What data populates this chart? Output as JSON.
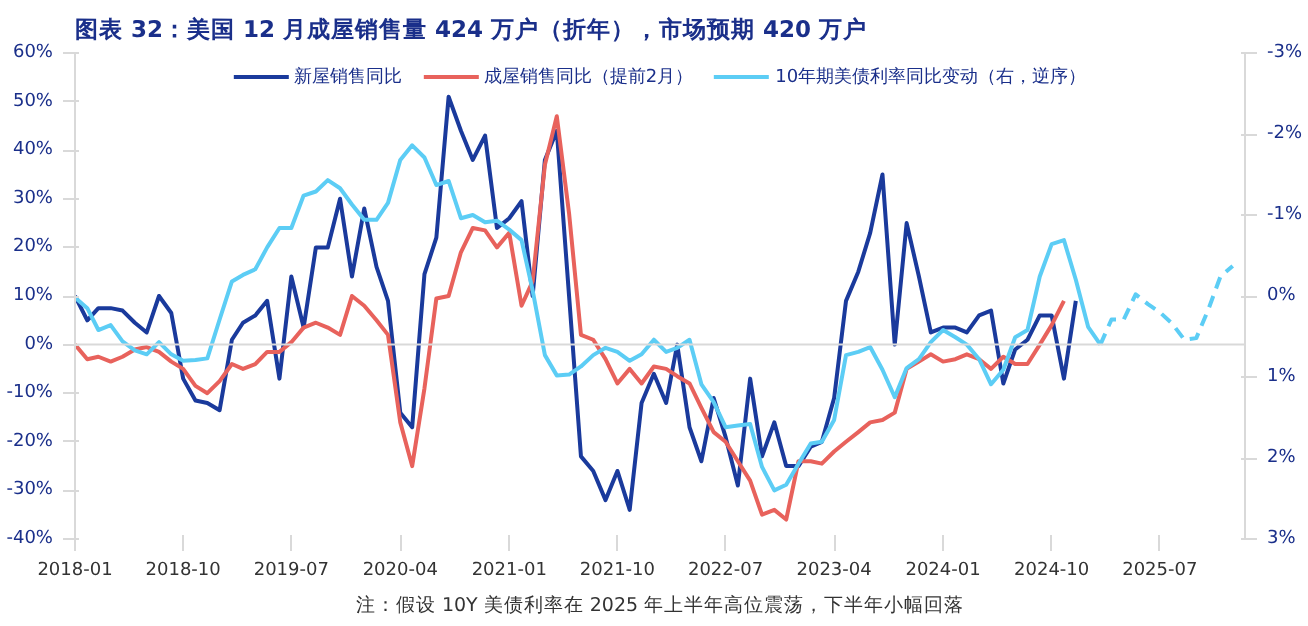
{
  "chart_data": {
    "type": "line",
    "title": "图表 32：美国 12 月成屋销售量 424 万户（折年），市场预期 420 万户",
    "annotations": [
      "注：假设 10Y 美债利率在 2025 年上半年高位震荡，下半年小幅回落"
    ],
    "xlim": [
      "2018-01",
      "2026-02"
    ],
    "x": [
      "2018-01",
      "2018-02",
      "2018-03",
      "2018-04",
      "2018-05",
      "2018-06",
      "2018-07",
      "2018-08",
      "2018-09",
      "2018-10",
      "2018-11",
      "2018-12",
      "2019-01",
      "2019-02",
      "2019-03",
      "2019-04",
      "2019-05",
      "2019-06",
      "2019-07",
      "2019-08",
      "2019-09",
      "2019-10",
      "2019-11",
      "2019-12",
      "2020-01",
      "2020-02",
      "2020-03",
      "2020-04",
      "2020-05",
      "2020-06",
      "2020-07",
      "2020-08",
      "2020-09",
      "2020-10",
      "2020-11",
      "2020-12",
      "2021-01",
      "2021-02",
      "2021-03",
      "2021-04",
      "2021-05",
      "2021-06",
      "2021-07",
      "2021-08",
      "2021-09",
      "2021-10",
      "2021-11",
      "2021-12",
      "2022-01",
      "2022-02",
      "2022-03",
      "2022-04",
      "2022-05",
      "2022-06",
      "2022-07",
      "2022-08",
      "2022-09",
      "2022-10",
      "2022-11",
      "2022-12",
      "2023-01",
      "2023-02",
      "2023-03",
      "2023-04",
      "2023-05",
      "2023-06",
      "2023-07",
      "2023-08",
      "2023-09",
      "2023-10",
      "2023-11",
      "2023-12",
      "2024-01",
      "2024-02",
      "2024-03",
      "2024-04",
      "2024-05",
      "2024-06",
      "2024-07",
      "2024-08",
      "2024-09",
      "2024-10",
      "2024-11",
      "2024-12",
      "2025-01",
      "2025-02"
    ],
    "xticks": [
      "2018-01",
      "2018-10",
      "2019-07",
      "2020-04",
      "2021-01",
      "2021-10",
      "2022-07",
      "2023-04",
      "2024-01",
      "2024-10",
      "2025-07"
    ],
    "ylim": [
      -40,
      60
    ],
    "yticks": [
      {
        "value": -40,
        "label": "-40%"
      },
      {
        "value": -30,
        "label": "-30%"
      },
      {
        "value": -20,
        "label": "-20%"
      },
      {
        "value": -10,
        "label": "-10%"
      },
      {
        "value": 0,
        "label": "0%"
      },
      {
        "value": 10,
        "label": "10%"
      },
      {
        "value": 20,
        "label": "20%"
      },
      {
        "value": 30,
        "label": "30%"
      },
      {
        "value": 40,
        "label": "40%"
      },
      {
        "value": 50,
        "label": "50%"
      },
      {
        "value": 60,
        "label": "60%"
      }
    ],
    "y2lim": [
      3,
      -3
    ],
    "y2ticks": [
      {
        "value": -3,
        "label": "-3%"
      },
      {
        "value": -2,
        "label": "-2%"
      },
      {
        "value": -1,
        "label": "-1%"
      },
      {
        "value": 0,
        "label": "0%"
      },
      {
        "value": 1,
        "label": "1%"
      },
      {
        "value": 2,
        "label": "2%"
      },
      {
        "value": 3,
        "label": "3%"
      }
    ],
    "ref_lines": [
      {
        "axis": "y",
        "value": 0,
        "color": "#d9d9d9"
      }
    ],
    "legend": "top",
    "grid": false,
    "marker": "none",
    "series": [
      {
        "name": "新屋销售同比",
        "color": "#1a3a9c",
        "values": [
          10,
          5,
          7.5,
          7.5,
          7,
          4.5,
          2.5,
          10,
          6.5,
          -7,
          -11.5,
          -12,
          -13.5,
          1,
          4.5,
          6,
          9,
          -7,
          14,
          3.5,
          20,
          20,
          30,
          14,
          28,
          16,
          9,
          -14,
          -17,
          14.5,
          22,
          51,
          44,
          38,
          43,
          24,
          26,
          29.5,
          10,
          38,
          44,
          10,
          -23,
          -26,
          -32,
          -26,
          -34,
          -12,
          -6,
          -12,
          0,
          -17,
          -24,
          -11,
          -19,
          -29,
          -7,
          -23,
          -16,
          -25,
          -25,
          -21,
          -20,
          -11,
          9,
          15,
          23,
          35,
          0,
          25,
          14,
          2.5,
          3.5,
          3.5,
          2.5,
          6,
          7,
          -8,
          -1,
          1,
          6,
          6,
          -7,
          9,
          null,
          null
        ]
      },
      {
        "name": "成屋销售同比（提前2月）",
        "color": "#e8625c",
        "values": [
          0,
          -3,
          -2.5,
          -3.5,
          -2.5,
          -1,
          -0.5,
          -1.5,
          -3.5,
          -5,
          -8.5,
          -10,
          -7.5,
          -4,
          -5,
          -4,
          -1.5,
          -1.5,
          0.5,
          3.5,
          4.5,
          3.5,
          2,
          10,
          8,
          5,
          2,
          -16,
          -25,
          -9,
          9.5,
          10,
          19,
          24,
          23.5,
          20,
          23,
          8,
          13,
          37,
          47,
          27,
          2,
          1,
          -3,
          -8,
          -5,
          -8,
          -4.5,
          -5,
          -6.5,
          -8,
          -13,
          -18,
          -20,
          -24,
          -28,
          -35,
          -34,
          -36,
          -24,
          -24,
          -24.5,
          -22,
          -20,
          -18,
          -16,
          -15.5,
          -14,
          -5,
          -3.5,
          -2,
          -3.5,
          -3,
          -2,
          -3,
          -5,
          -2.5,
          -4,
          -4,
          0,
          4,
          9,
          null,
          null,
          null
        ]
      },
      {
        "name": "10年期美债利率同比变动（右，逆序）",
        "color": "#5ccdf5",
        "axis": "y2",
        "values": [
          0.02,
          0.15,
          0.42,
          0.36,
          0.56,
          0.67,
          0.72,
          0.57,
          0.72,
          0.8,
          0.79,
          0.77,
          0.29,
          -0.18,
          -0.26,
          -0.33,
          -0.6,
          -0.84,
          -0.84,
          -1.24,
          -1.29,
          -1.43,
          -1.33,
          -1.13,
          -0.94,
          -0.94,
          -1.15,
          -1.68,
          -1.86,
          -1.71,
          -1.37,
          -1.42,
          -0.96,
          -1.0,
          -0.91,
          -0.93,
          -0.82,
          -0.69,
          -0.07,
          0.73,
          0.98,
          0.97,
          0.87,
          0.73,
          0.64,
          0.69,
          0.8,
          0.72,
          0.54,
          0.69,
          0.64,
          0.54,
          1.09,
          1.31,
          1.62,
          1.6,
          1.58,
          2.11,
          2.4,
          2.33,
          2.07,
          1.82,
          1.8,
          1.53,
          0.73,
          0.69,
          0.63,
          0.91,
          1.25,
          0.89,
          0.78,
          0.57,
          0.42,
          0.51,
          0.6,
          0.78,
          1.09,
          0.91,
          0.51,
          0.42,
          -0.24,
          -0.64,
          -0.69,
          -0.2,
          0.38,
          0.6
        ]
      },
      {
        "color": "#5ccdf5",
        "axis": "y2",
        "line_style": "dashed",
        "x": [
          "2025-02",
          "2025-03",
          "2025-04",
          "2025-05",
          "2025-06",
          "2025-07",
          "2025-08",
          "2025-09",
          "2025-10",
          "2025-11",
          "2025-12",
          "2026-01"
        ],
        "values": [
          0.6,
          0.29,
          0.29,
          -0.02,
          0.1,
          0.2,
          0.34,
          0.54,
          0.52,
          0.16,
          -0.24,
          -0.37
        ]
      }
    ]
  }
}
